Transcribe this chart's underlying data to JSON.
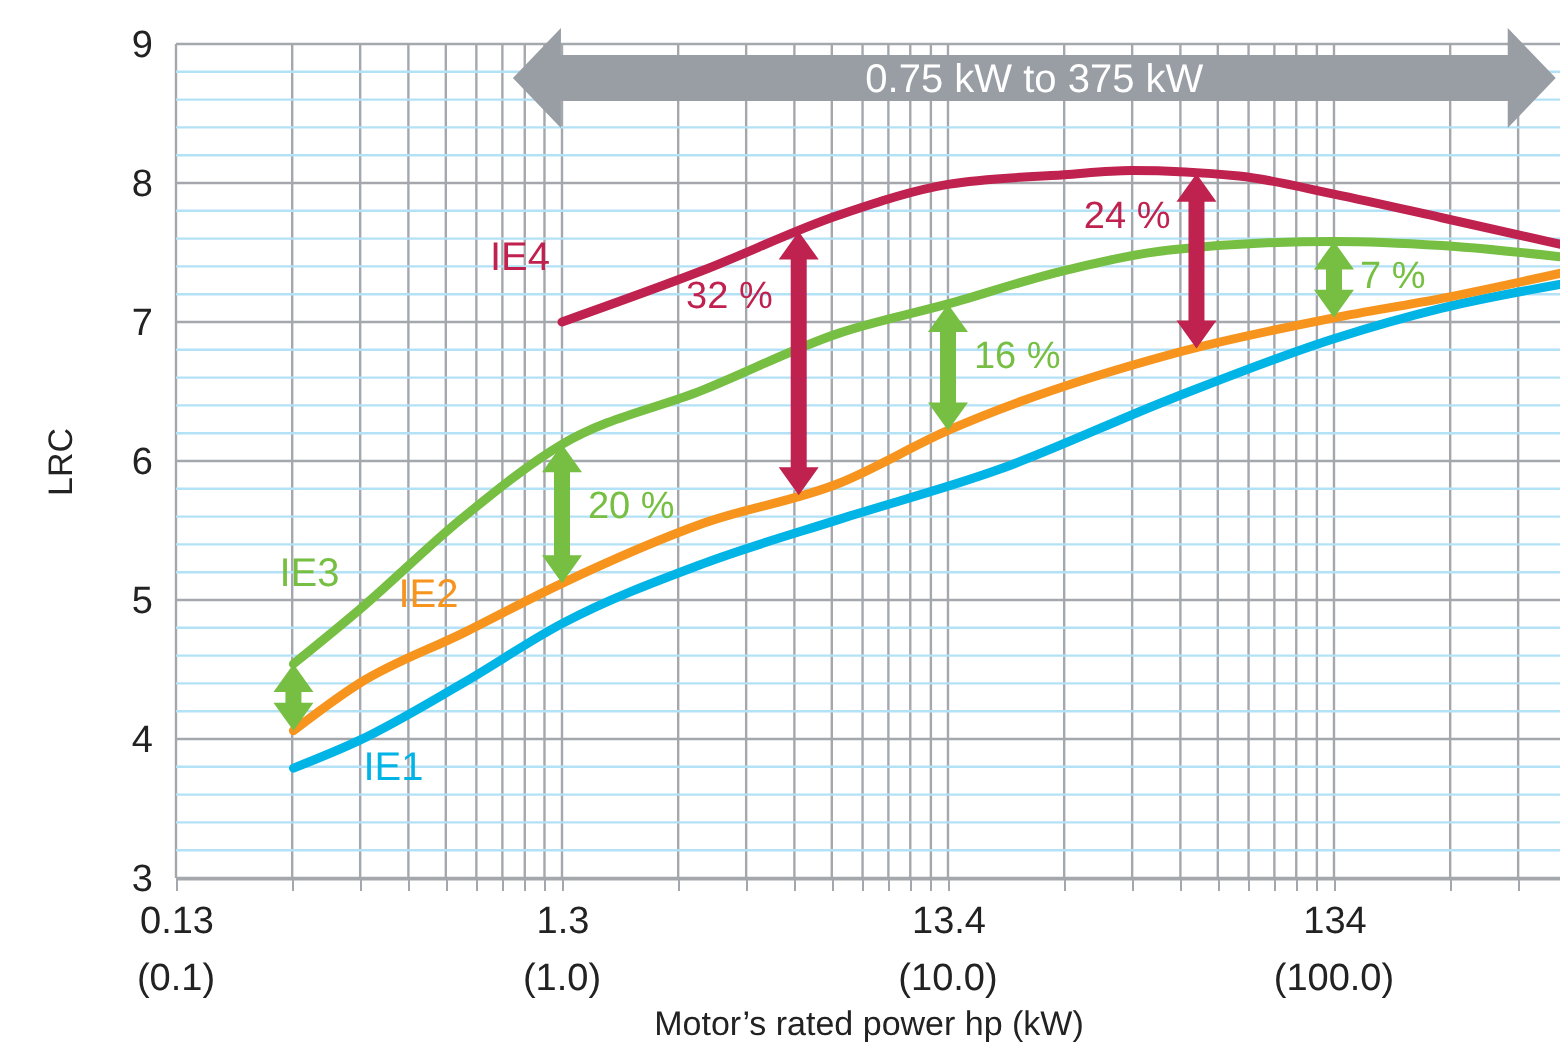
{
  "chart_data": {
    "type": "line",
    "xlabel": "Motor’s rated power hp (kW)",
    "ylabel": "LRC",
    "log": "x",
    "xlim": [
      0.134,
      516
    ],
    "ylim": [
      3,
      9
    ],
    "grid": true,
    "line_style": "solid",
    "xticks": [
      {
        "value": 0.134,
        "label": "0.13"
      },
      {
        "value": 0.268,
        "label": null
      },
      {
        "value": 0.402,
        "label": null
      },
      {
        "value": 0.536,
        "label": null
      },
      {
        "value": 0.67,
        "label": null
      },
      {
        "value": 0.804,
        "label": null
      },
      {
        "value": 0.939,
        "label": null
      },
      {
        "value": 1.073,
        "label": null
      },
      {
        "value": 1.207,
        "label": null
      },
      {
        "value": 1.34,
        "label": "1.3"
      },
      {
        "value": 2.68,
        "label": null
      },
      {
        "value": 4.02,
        "label": null
      },
      {
        "value": 5.36,
        "label": null
      },
      {
        "value": 6.7,
        "label": null
      },
      {
        "value": 8.05,
        "label": null
      },
      {
        "value": 9.39,
        "label": null
      },
      {
        "value": 10.7,
        "label": null
      },
      {
        "value": 12.1,
        "label": null
      },
      13.4,
      {
        "value": 26.8,
        "label": null
      },
      {
        "value": 40.2,
        "label": null
      },
      {
        "value": 53.6,
        "label": null
      },
      {
        "value": 67,
        "label": null
      },
      {
        "value": 80.5,
        "label": null
      },
      {
        "value": 93.9,
        "label": null
      },
      {
        "value": 107,
        "label": null
      },
      {
        "value": 121,
        "label": null
      },
      134,
      {
        "value": 268,
        "label": null
      },
      {
        "value": 402,
        "label": null
      }
    ],
    "yticks": [
      3,
      {
        "value": 3.2,
        "label": null
      },
      {
        "value": 3.4,
        "label": null
      },
      {
        "value": 3.6,
        "label": null
      },
      {
        "value": 3.8,
        "label": null
      },
      4,
      {
        "value": 4.2,
        "label": null
      },
      {
        "value": 4.4,
        "label": null
      },
      {
        "value": 4.6,
        "label": null
      },
      {
        "value": 4.8,
        "label": null
      },
      5,
      {
        "value": 5.2,
        "label": null
      },
      {
        "value": 5.4,
        "label": null
      },
      {
        "value": 5.6,
        "label": null
      },
      {
        "value": 5.8,
        "label": null
      },
      6,
      {
        "value": 6.2,
        "label": null
      },
      {
        "value": 6.4,
        "label": null
      },
      {
        "value": 6.6,
        "label": null
      },
      {
        "value": 6.8,
        "label": null
      },
      7,
      {
        "value": 7.2,
        "label": null
      },
      {
        "value": 7.4,
        "label": null
      },
      {
        "value": 7.6,
        "label": null
      },
      {
        "value": 7.8,
        "label": null
      },
      8,
      {
        "value": 8.2,
        "label": null
      },
      {
        "value": 8.4,
        "label": null
      },
      {
        "value": 8.6,
        "label": null
      },
      {
        "value": 8.8,
        "label": null
      },
      9
    ],
    "series": [
      {
        "name": "IE1",
        "color": "#00b4e6",
        "x": [
          0.27,
          0.4,
          0.74,
          1.34,
          3.1,
          7,
          18.2,
          51,
          134,
          255,
          515
        ],
        "values": [
          3.79,
          3.99,
          4.4,
          4.83,
          5.26,
          5.58,
          5.94,
          6.45,
          6.88,
          7.1,
          7.27
        ]
      },
      {
        "name": "IE2",
        "color": "#f7941d",
        "x": [
          0.27,
          0.4,
          0.74,
          1.34,
          3.1,
          7,
          13.4,
          51,
          134,
          255,
          515
        ],
        "values": [
          4.06,
          4.4,
          4.76,
          5.12,
          5.55,
          5.84,
          6.22,
          6.77,
          7.03,
          7.17,
          7.35
        ]
      },
      {
        "name": "IE3",
        "color": "#76bf43",
        "x": [
          0.27,
          0.4,
          0.74,
          1.34,
          3.1,
          7,
          13.4,
          26.8,
          51,
          134,
          255,
          515
        ],
        "values": [
          4.54,
          4.93,
          5.59,
          6.12,
          6.51,
          6.92,
          7.13,
          7.37,
          7.52,
          7.58,
          7.55,
          7.47
        ]
      },
      {
        "name": "IE4",
        "color": "#c0224f",
        "x": [
          1.34,
          3.1,
          7,
          13.4,
          26.8,
          40,
          76,
          134,
          255,
          515
        ],
        "values": [
          7.0,
          7.37,
          7.77,
          7.99,
          8.06,
          8.09,
          8.05,
          7.92,
          7.75,
          7.56
        ]
      }
    ],
    "annotations": [
      "20 %",
      "32 %",
      "16 %",
      "24 %",
      "7 %",
      "(0.1)",
      "(1.0)",
      "(10.0)",
      "(100.0)",
      "0.75 kW to 375 kW"
    ]
  }
}
